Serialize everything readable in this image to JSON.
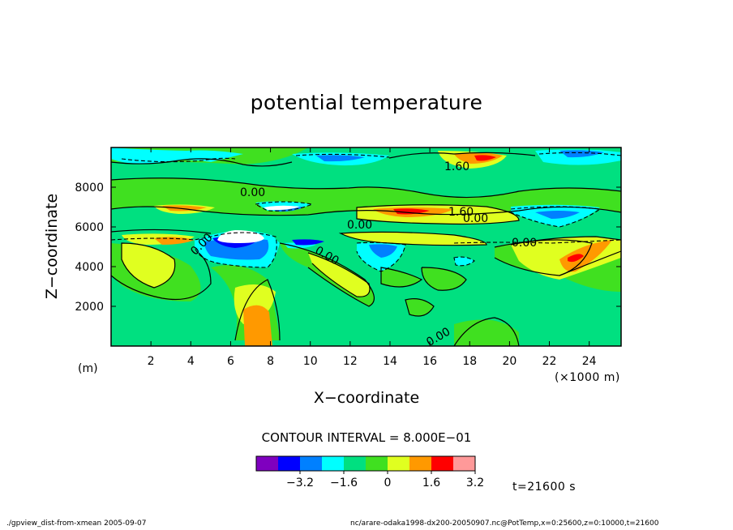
{
  "chart_data": {
    "type": "contour",
    "title": "potential temperature",
    "xlabel": "X−coordinate",
    "ylabel": "Z−coordinate",
    "x_unit_label": "(×1000 m)",
    "y_unit_label": "(m)",
    "xlim": [
      0,
      25.6
    ],
    "ylim": [
      0,
      10000
    ],
    "x_ticks": [
      2,
      4,
      6,
      8,
      10,
      12,
      14,
      16,
      18,
      20,
      22,
      24
    ],
    "y_ticks": [
      2000,
      4000,
      6000,
      8000
    ],
    "contour_interval_text": "CONTOUR INTERVAL = 8.000E−01",
    "colorbar": {
      "colors": [
        "#7f00bf",
        "#0000ff",
        "#0080ff",
        "#00ffff",
        "#00e080",
        "#40e020",
        "#e0ff20",
        "#ff9900",
        "#ff0000",
        "#ff9999"
      ],
      "tick_labels": [
        "−3.2",
        "−1.6",
        "0",
        "1.6",
        "3.2"
      ]
    },
    "contour_labels": [
      "0.00",
      "0.00",
      "1.60",
      "1.60",
      "0.00",
      "0.00",
      "0.00",
      "0.00",
      "0.00"
    ],
    "time_label": "t=21600 s"
  },
  "footer": {
    "left": "./gpview_dist-from-xmean  2005-09-07",
    "right": "nc/arare-odaka1998-dx200-20050907.nc@PotTemp,x=0:25600,z=0:10000,t=21600"
  }
}
